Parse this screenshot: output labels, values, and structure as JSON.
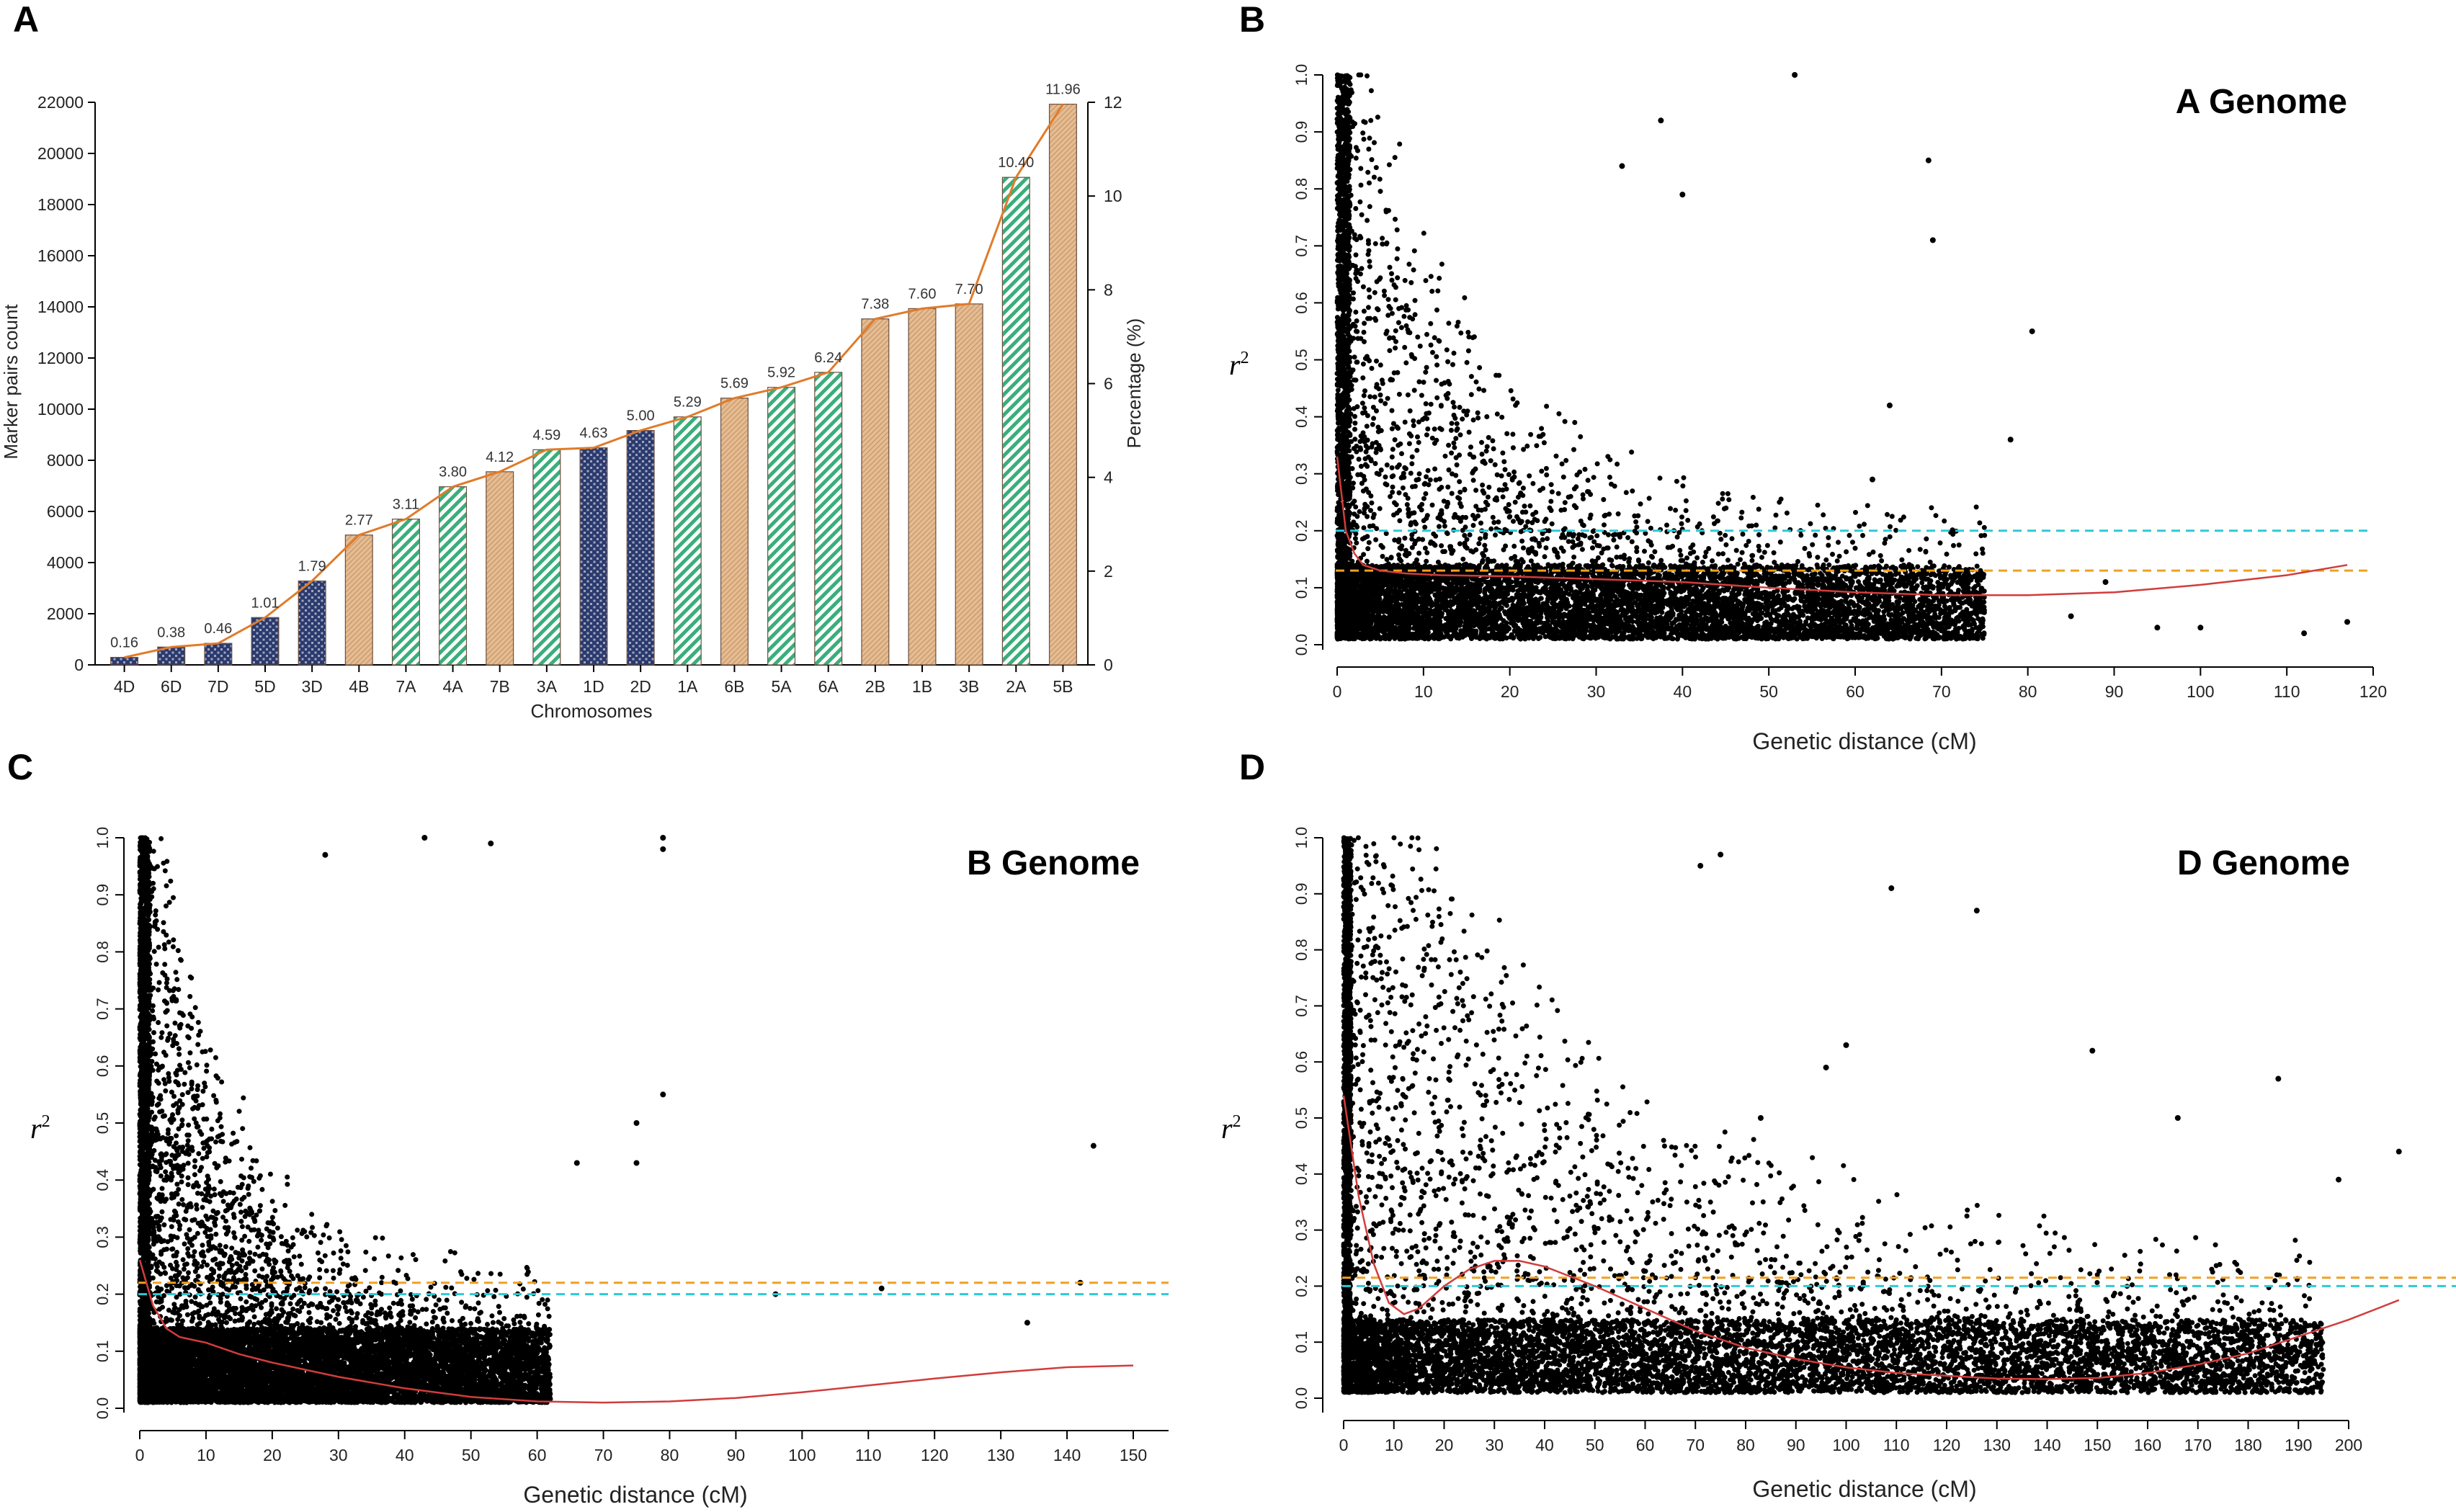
{
  "figure": {
    "panel_letters": [
      "A",
      "B",
      "C",
      "D"
    ]
  },
  "colors": {
    "D_genome": "#2b3a6e",
    "A_genome": "#3aae7a",
    "B_genome": "#e0b48a",
    "line": "#e07b2a",
    "fit_curve": "#d23c3c",
    "cyan_threshold": "#2ec9d6",
    "orange_threshold": "#f0a020",
    "points": "#000000"
  },
  "chart_data": [
    {
      "panel": "A",
      "type": "bar",
      "title": "",
      "xlabel": "Chromosomes",
      "ylabel": "Marker pairs count",
      "y2label": "Percentage (%)",
      "ylim": [
        0,
        22000
      ],
      "y2lim": [
        0,
        12
      ],
      "yticks": [
        0,
        2000,
        4000,
        6000,
        8000,
        10000,
        12000,
        14000,
        16000,
        18000,
        20000,
        22000
      ],
      "y2ticks": [
        0,
        2,
        4,
        6,
        8,
        10,
        12
      ],
      "categories": [
        "4D",
        "6D",
        "7D",
        "5D",
        "3D",
        "4B",
        "7A",
        "4A",
        "7B",
        "3A",
        "1D",
        "2D",
        "1A",
        "6B",
        "5A",
        "6A",
        "2B",
        "1B",
        "3B",
        "2A",
        "5B"
      ],
      "genome": [
        "D",
        "D",
        "D",
        "D",
        "D",
        "B",
        "A",
        "A",
        "B",
        "A",
        "D",
        "D",
        "A",
        "B",
        "A",
        "A",
        "B",
        "B",
        "B",
        "A",
        "B"
      ],
      "values": [
        294,
        697,
        843,
        1852,
        3281,
        5078,
        5701,
        6966,
        7553,
        8414,
        8488,
        9166,
        9698,
        10431,
        10853,
        11439,
        13529,
        13932,
        14115,
        19065,
        21925
      ],
      "percentages": [
        0.16,
        0.38,
        0.46,
        1.01,
        1.79,
        2.77,
        3.11,
        3.8,
        4.12,
        4.59,
        4.63,
        5.0,
        5.29,
        5.69,
        5.92,
        6.24,
        7.38,
        7.6,
        7.7,
        10.4,
        11.96
      ],
      "percentage_labels": [
        "0.16",
        "0.38",
        "0.46",
        "1.01",
        "1.79",
        "2.77",
        "3.11",
        "3.80",
        "4.12",
        "4.59",
        "4.63",
        "5.00",
        "5.29",
        "5.69",
        "5.92",
        "6.24",
        "7.38",
        "7.60",
        "7.70",
        "10.40",
        "11.96"
      ]
    },
    {
      "panel": "B",
      "type": "scatter",
      "title": "A Genome",
      "xlabel": "Genetic distance (cM)",
      "ylabel": "r",
      "ylabel_sup": "2",
      "xlim": [
        0,
        120
      ],
      "ylim": [
        0,
        1
      ],
      "xticks": [
        0,
        10,
        20,
        30,
        40,
        50,
        60,
        70,
        80,
        90,
        100,
        110,
        120
      ],
      "yticks": [
        0.0,
        0.1,
        0.2,
        0.3,
        0.4,
        0.5,
        0.6,
        0.7,
        0.8,
        0.9,
        1.0
      ],
      "ytick_labels": [
        "0.0",
        "0.1",
        "0.2",
        "0.3",
        "0.4",
        "0.5",
        "0.6",
        "0.7",
        "0.8",
        "0.9",
        "1.0"
      ],
      "thresholds": [
        {
          "name": "cyan",
          "y": 0.2
        },
        {
          "name": "orange",
          "y": 0.13
        }
      ],
      "fit_curve": {
        "x": [
          0,
          1,
          2,
          3,
          5,
          8,
          12,
          20,
          30,
          40,
          50,
          60,
          70,
          80,
          90,
          100,
          110,
          117
        ],
        "y": [
          0.33,
          0.2,
          0.16,
          0.14,
          0.13,
          0.125,
          0.122,
          0.12,
          0.115,
          0.11,
          0.1,
          0.092,
          0.087,
          0.087,
          0.092,
          0.105,
          0.122,
          0.14
        ]
      },
      "dense_region": {
        "x_max": 75,
        "decay_scale": 14
      },
      "outliers": [
        [
          80.5,
          0.55
        ],
        [
          78,
          0.36
        ],
        [
          68.5,
          0.85
        ],
        [
          69,
          0.71
        ],
        [
          64,
          0.42
        ],
        [
          62,
          0.29
        ],
        [
          40,
          0.79
        ],
        [
          37.5,
          0.92
        ],
        [
          33,
          0.84
        ],
        [
          53,
          1.0
        ],
        [
          89,
          0.11
        ],
        [
          100,
          0.03
        ],
        [
          112,
          0.02
        ],
        [
          117,
          0.04
        ],
        [
          85,
          0.05
        ],
        [
          95,
          0.03
        ]
      ]
    },
    {
      "panel": "C",
      "type": "scatter",
      "title": "B Genome",
      "xlabel": "Genetic distance (cM)",
      "ylabel": "r",
      "ylabel_sup": "2",
      "xlim": [
        0,
        150
      ],
      "ylim": [
        0,
        1
      ],
      "xticks": [
        0,
        10,
        20,
        30,
        40,
        50,
        60,
        70,
        80,
        90,
        100,
        110,
        120,
        130,
        140,
        150
      ],
      "yticks": [
        0.0,
        0.1,
        0.2,
        0.3,
        0.4,
        0.5,
        0.6,
        0.7,
        0.8,
        0.9,
        1.0
      ],
      "ytick_labels": [
        "0.0",
        "0.1",
        "0.2",
        "0.3",
        "0.4",
        "0.5",
        "0.6",
        "0.7",
        "0.8",
        "0.9",
        "1.0"
      ],
      "thresholds": [
        {
          "name": "orange",
          "y": 0.22
        },
        {
          "name": "cyan",
          "y": 0.2
        }
      ],
      "fit_curve": {
        "x": [
          0,
          1,
          2,
          4,
          6,
          8,
          10,
          15,
          20,
          30,
          40,
          50,
          60,
          70,
          80,
          90,
          100,
          110,
          120,
          130,
          140,
          150
        ],
        "y": [
          0.26,
          0.22,
          0.18,
          0.14,
          0.125,
          0.12,
          0.115,
          0.095,
          0.08,
          0.055,
          0.035,
          0.02,
          0.012,
          0.01,
          0.012,
          0.018,
          0.028,
          0.04,
          0.052,
          0.063,
          0.072,
          0.075
        ]
      },
      "dense_region": {
        "x_max": 62,
        "decay_scale": 12
      },
      "outliers": [
        [
          144,
          0.46
        ],
        [
          142,
          0.22
        ],
        [
          79,
          1.0
        ],
        [
          79,
          0.98
        ],
        [
          75,
          0.5
        ],
        [
          75,
          0.43
        ],
        [
          79,
          0.55
        ],
        [
          66,
          0.43
        ],
        [
          53,
          0.99
        ],
        [
          43,
          1.0
        ],
        [
          28,
          0.97
        ],
        [
          96,
          0.2
        ],
        [
          112,
          0.21
        ],
        [
          134,
          0.15
        ]
      ]
    },
    {
      "panel": "D",
      "type": "scatter",
      "title": "D Genome",
      "xlabel": "Genetic distance (cM)",
      "ylabel": "r",
      "ylabel_sup": "2",
      "xlim": [
        0,
        200
      ],
      "ylim": [
        0,
        1
      ],
      "xticks": [
        0,
        10,
        20,
        30,
        40,
        50,
        60,
        70,
        80,
        90,
        100,
        110,
        120,
        130,
        140,
        150,
        160,
        170,
        180,
        190,
        200
      ],
      "yticks": [
        0.0,
        0.1,
        0.2,
        0.3,
        0.4,
        0.5,
        0.6,
        0.7,
        0.8,
        0.9,
        1.0
      ],
      "ytick_labels": [
        "0.0",
        "0.1",
        "0.2",
        "0.3",
        "0.4",
        "0.5",
        "0.6",
        "0.7",
        "0.8",
        "0.9",
        "1.0"
      ],
      "thresholds": [
        {
          "name": "orange",
          "y": 0.215
        },
        {
          "name": "cyan",
          "y": 0.2
        }
      ],
      "fit_curve": {
        "x": [
          0,
          3,
          6,
          9,
          12,
          15,
          20,
          25,
          30,
          35,
          40,
          50,
          60,
          70,
          80,
          90,
          100,
          110,
          120,
          130,
          140,
          150,
          160,
          170,
          180,
          190,
          200,
          210
        ],
        "y": [
          0.54,
          0.36,
          0.24,
          0.17,
          0.15,
          0.16,
          0.2,
          0.23,
          0.245,
          0.245,
          0.235,
          0.2,
          0.16,
          0.12,
          0.09,
          0.07,
          0.055,
          0.045,
          0.04,
          0.035,
          0.034,
          0.036,
          0.045,
          0.06,
          0.08,
          0.11,
          0.14,
          0.175
        ]
      },
      "dense_region": {
        "x_max": 195,
        "decay_scale": 55
      },
      "outliers": [
        [
          210,
          0.44
        ],
        [
          198,
          0.39
        ],
        [
          186,
          0.57
        ],
        [
          166,
          0.5
        ],
        [
          149,
          0.62
        ],
        [
          126,
          0.87
        ],
        [
          109,
          0.91
        ],
        [
          100,
          0.63
        ],
        [
          96,
          0.59
        ],
        [
          83,
          0.5
        ],
        [
          75,
          0.97
        ],
        [
          71,
          0.95
        ]
      ]
    }
  ]
}
